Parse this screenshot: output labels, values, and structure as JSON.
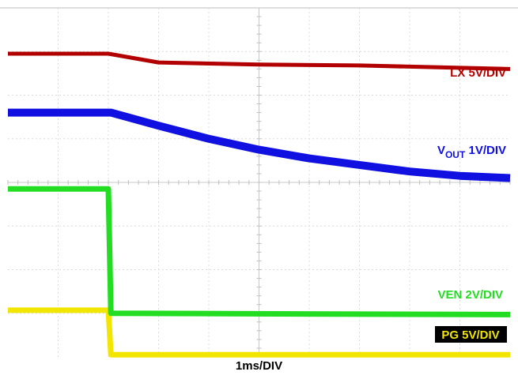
{
  "chart_data": {
    "type": "line",
    "title": "",
    "xlabel": "1ms/DIV",
    "time_div_ms": 1,
    "x_divisions": 10,
    "y_divisions": 8,
    "grid": true,
    "series": [
      {
        "name": "LX 5V/DIV",
        "label_main": "LX 5V/DIV",
        "color": "#b20000",
        "unit_per_div": "5V/DIV",
        "points_div": [
          [
            0,
            6.95
          ],
          [
            2,
            6.95
          ],
          [
            3.0,
            6.75
          ],
          [
            5,
            6.7
          ],
          [
            7,
            6.68
          ],
          [
            10,
            6.6
          ]
        ]
      },
      {
        "name": "VOUT 1V/DIV",
        "label_main": "V",
        "label_sub": "OUT",
        "label_tail": " 1V/DIV",
        "color": "#1010e0",
        "unit_per_div": "1V/DIV",
        "points_div": [
          [
            0,
            5.6
          ],
          [
            2.05,
            5.6
          ],
          [
            3,
            5.3
          ],
          [
            4,
            5.0
          ],
          [
            5,
            4.75
          ],
          [
            6,
            4.55
          ],
          [
            7,
            4.4
          ],
          [
            8,
            4.25
          ],
          [
            9,
            4.15
          ],
          [
            10,
            4.1
          ]
        ]
      },
      {
        "name": "VEN 2V/DIV",
        "label_main": "VEN 2V/DIV",
        "color": "#22dd22",
        "unit_per_div": "2V/DIV",
        "points_div": [
          [
            0,
            3.85
          ],
          [
            2.0,
            3.85
          ],
          [
            2.05,
            1.0
          ],
          [
            10,
            0.97
          ]
        ]
      },
      {
        "name": "PG 5V/DIV",
        "label_main": "PG 5V/DIV",
        "color": "#f2e600",
        "unit_per_div": "5V/DIV",
        "points_div": [
          [
            0,
            1.07
          ],
          [
            2.0,
            1.07
          ],
          [
            2.05,
            0.05
          ],
          [
            10,
            0.05
          ]
        ]
      }
    ]
  }
}
